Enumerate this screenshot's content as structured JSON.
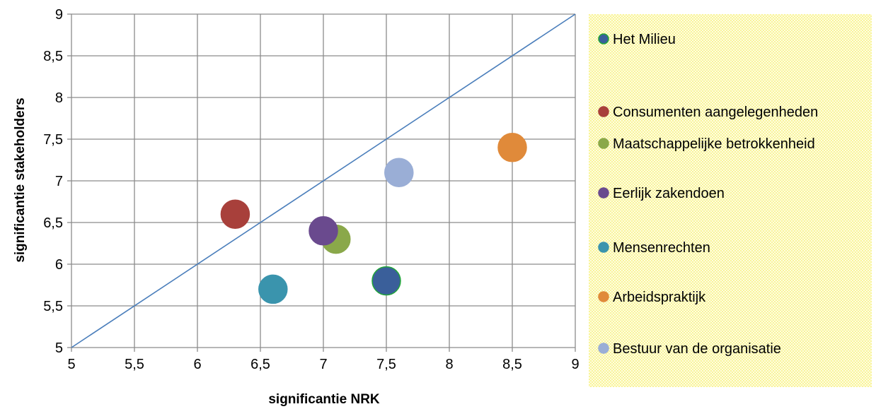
{
  "chart_data": {
    "type": "scatter",
    "title": "",
    "xlabel": "significantie NRK",
    "ylabel": "significantie stakeholders",
    "xlim": [
      5,
      9
    ],
    "ylim": [
      5,
      9
    ],
    "x_ticks": [
      "5",
      "5,5",
      "6",
      "6,5",
      "7",
      "7,5",
      "8",
      "8,5",
      "9"
    ],
    "y_ticks": [
      "5",
      "5,5",
      "6",
      "6,5",
      "7",
      "7,5",
      "8",
      "8,5",
      "9"
    ],
    "grid": true,
    "legend_position": "right",
    "reference_line": {
      "from": [
        5,
        5
      ],
      "to": [
        9,
        9
      ],
      "color": "#4a7ebb"
    },
    "series": [
      {
        "name": "Het Milieu",
        "x": 7.5,
        "y": 5.8,
        "color": "#3a5f9a",
        "stroke": "#22a63a"
      },
      {
        "name": "Consumenten aangelegenheden",
        "x": 6.3,
        "y": 6.6,
        "color": "#a8403b",
        "stroke": "#a8403b"
      },
      {
        "name": "Maatschappelijke betrokkenheid",
        "x": 7.1,
        "y": 6.3,
        "color": "#8aa84a",
        "stroke": "#8aa84a"
      },
      {
        "name": "Eerlijk zakendoen",
        "x": 7.0,
        "y": 6.4,
        "color": "#6a4a8e",
        "stroke": "#6a4a8e"
      },
      {
        "name": "Mensenrechten",
        "x": 6.6,
        "y": 5.7,
        "color": "#3a94ad",
        "stroke": "#3a94ad"
      },
      {
        "name": "Arbeidspraktijk",
        "x": 8.5,
        "y": 7.4,
        "color": "#e08a3a",
        "stroke": "#e08a3a"
      },
      {
        "name": "Bestuur van de organisatie",
        "x": 7.6,
        "y": 7.1,
        "color": "#9aaed6",
        "stroke": "#9aaed6"
      }
    ],
    "legend_background": "#fdfbcc"
  }
}
